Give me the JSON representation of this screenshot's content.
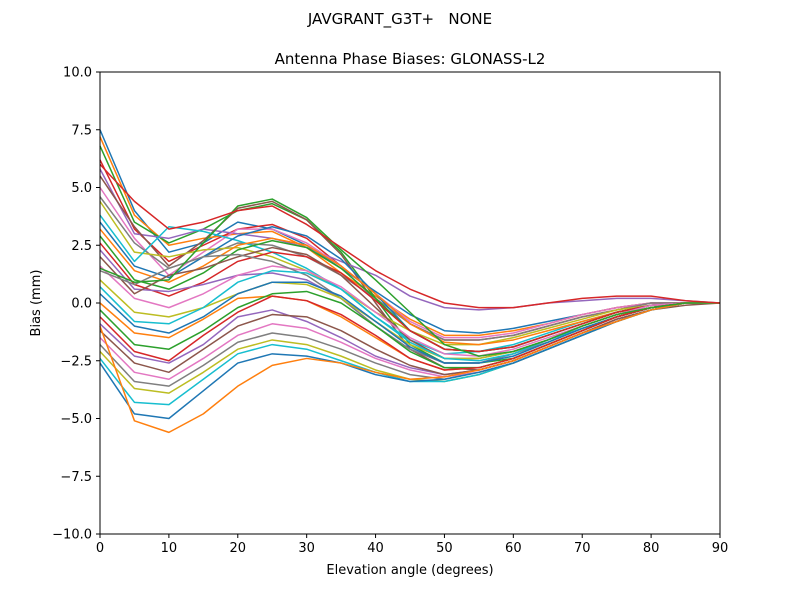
{
  "figure": {
    "suptitle": "JAVGRANT_G3T+   NONE"
  },
  "chart_data": {
    "type": "line",
    "title": "Antenna Phase Biases: GLONASS-L2",
    "xlabel": "Elevation angle (degrees)",
    "ylabel": "Bias (mm)",
    "xlim": [
      0,
      90
    ],
    "ylim": [
      -10,
      10
    ],
    "xticks": [
      0,
      10,
      20,
      30,
      40,
      50,
      60,
      70,
      80,
      90
    ],
    "yticks": [
      -10.0,
      -7.5,
      -5.0,
      -2.5,
      0.0,
      2.5,
      5.0,
      7.5,
      10.0
    ],
    "x": [
      0,
      5,
      10,
      15,
      20,
      25,
      30,
      35,
      40,
      45,
      50,
      55,
      60,
      65,
      70,
      75,
      80,
      85,
      90
    ],
    "grid": false,
    "legend": false,
    "palette": [
      "#1f77b4",
      "#ff7f0e",
      "#2ca02c",
      "#d62728",
      "#9467bd",
      "#8c564b",
      "#e377c2",
      "#7f7f7f",
      "#bcbd22",
      "#17becf"
    ],
    "series": [
      {
        "values": [
          7.5,
          4.0,
          2.2,
          2.6,
          3.5,
          3.2,
          2.5,
          1.5,
          0.5,
          -0.5,
          -1.2,
          -1.3,
          -1.1,
          -0.8,
          -0.5,
          -0.2,
          0.0,
          0.0,
          0.0
        ]
      },
      {
        "values": [
          7.2,
          3.8,
          2.5,
          2.8,
          3.0,
          3.1,
          2.4,
          1.3,
          0.3,
          -0.7,
          -1.4,
          -1.4,
          -1.2,
          -0.9,
          -0.5,
          -0.2,
          0.0,
          0.0,
          0.0
        ]
      },
      {
        "values": [
          6.8,
          3.5,
          2.6,
          3.2,
          4.0,
          4.3,
          3.6,
          2.2,
          0.2,
          -1.8,
          -2.6,
          -2.6,
          -2.4,
          -1.8,
          -1.2,
          -0.6,
          -0.2,
          0.0,
          0.0
        ]
      },
      {
        "values": [
          6.2,
          3.2,
          1.8,
          2.5,
          3.2,
          3.4,
          2.8,
          1.6,
          0.4,
          -0.9,
          -1.6,
          -1.6,
          -1.4,
          -1.0,
          -0.6,
          -0.3,
          0.0,
          0.0,
          0.0
        ]
      },
      {
        "values": [
          5.8,
          3.0,
          2.8,
          3.2,
          3.0,
          2.8,
          2.4,
          1.8,
          1.2,
          0.3,
          -0.2,
          -0.3,
          -0.2,
          0.0,
          0.1,
          0.2,
          0.2,
          0.1,
          0.0
        ]
      },
      {
        "values": [
          5.5,
          3.3,
          1.6,
          2.7,
          4.1,
          4.4,
          3.6,
          2.1,
          0.0,
          -2.0,
          -2.8,
          -2.9,
          -2.5,
          -1.9,
          -1.3,
          -0.7,
          -0.3,
          -0.1,
          0.0
        ]
      },
      {
        "values": [
          5.0,
          2.8,
          1.2,
          2.2,
          3.2,
          3.2,
          2.6,
          1.6,
          0.4,
          -0.8,
          -1.5,
          -1.5,
          -1.3,
          -0.9,
          -0.5,
          -0.2,
          0.0,
          0.0,
          0.0
        ]
      },
      {
        "values": [
          4.6,
          2.6,
          1.5,
          2.0,
          2.6,
          2.5,
          2.0,
          1.2,
          0.2,
          -0.9,
          -1.6,
          -1.6,
          -1.4,
          -1.0,
          -0.6,
          -0.3,
          0.0,
          0.0,
          0.0
        ]
      },
      {
        "values": [
          4.4,
          2.2,
          2.0,
          2.3,
          2.4,
          2.0,
          1.4,
          0.6,
          -0.4,
          -1.2,
          -1.8,
          -1.8,
          -1.5,
          -1.1,
          -0.7,
          -0.3,
          -0.1,
          0.0,
          0.0
        ]
      },
      {
        "values": [
          3.8,
          1.8,
          3.3,
          3.1,
          2.7,
          2.2,
          1.5,
          0.6,
          -0.6,
          -1.6,
          -2.2,
          -2.1,
          -1.8,
          -1.3,
          -0.8,
          -0.4,
          -0.1,
          0.0,
          0.0
        ]
      },
      {
        "values": [
          3.5,
          1.6,
          1.1,
          2.0,
          2.9,
          3.3,
          2.9,
          1.9,
          0.4,
          -1.2,
          -2.0,
          -2.1,
          -1.9,
          -1.4,
          -0.9,
          -0.4,
          -0.1,
          0.0,
          0.0
        ]
      },
      {
        "values": [
          3.2,
          1.4,
          0.9,
          1.6,
          2.5,
          2.8,
          2.5,
          1.6,
          0.4,
          -0.9,
          -1.7,
          -1.8,
          -1.6,
          -1.2,
          -0.8,
          -0.4,
          -0.1,
          0.0,
          0.0
        ]
      },
      {
        "values": [
          2.9,
          1.0,
          0.6,
          1.3,
          2.3,
          2.7,
          2.4,
          1.5,
          0.2,
          -1.2,
          -2.0,
          -2.1,
          -1.9,
          -1.4,
          -0.9,
          -0.4,
          -0.1,
          0.0,
          0.0
        ]
      },
      {
        "values": [
          2.6,
          0.8,
          0.3,
          0.9,
          1.8,
          2.2,
          2.0,
          1.3,
          0.1,
          -1.2,
          -2.0,
          -2.1,
          -1.9,
          -1.4,
          -0.9,
          -0.4,
          -0.1,
          0.0,
          0.0
        ]
      },
      {
        "values": [
          2.3,
          0.6,
          0.5,
          0.8,
          1.2,
          1.3,
          1.0,
          0.2,
          -1.0,
          -2.0,
          -2.6,
          -2.6,
          -2.2,
          -1.6,
          -1.0,
          -0.5,
          -0.1,
          0.0,
          0.0
        ]
      },
      {
        "values": [
          2.0,
          0.4,
          1.2,
          1.5,
          2.0,
          2.4,
          2.1,
          1.2,
          -0.2,
          -1.6,
          -2.4,
          -2.4,
          -2.1,
          -1.6,
          -1.0,
          -0.5,
          -0.2,
          0.0,
          0.0
        ]
      },
      {
        "values": [
          1.6,
          0.2,
          -0.2,
          0.4,
          1.2,
          1.6,
          1.4,
          0.7,
          -0.4,
          -1.5,
          -2.2,
          -2.3,
          -2.0,
          -1.5,
          -1.0,
          -0.5,
          -0.1,
          0.0,
          0.0
        ]
      },
      {
        "values": [
          1.4,
          0.8,
          1.5,
          2.0,
          2.1,
          1.8,
          1.2,
          0.2,
          -1.0,
          -2.0,
          -2.6,
          -2.6,
          -2.2,
          -1.7,
          -1.1,
          -0.6,
          -0.2,
          0.0,
          0.0
        ]
      },
      {
        "values": [
          1.0,
          -0.4,
          -0.6,
          -0.2,
          0.4,
          0.9,
          0.8,
          0.2,
          -0.8,
          -1.8,
          -2.4,
          -2.4,
          -2.1,
          -1.6,
          -1.0,
          -0.5,
          -0.2,
          0.0,
          0.0
        ]
      },
      {
        "values": [
          0.7,
          -0.8,
          -0.9,
          -0.2,
          0.9,
          1.4,
          1.3,
          0.6,
          -0.6,
          -1.7,
          -2.4,
          -2.5,
          -2.2,
          -1.6,
          -1.1,
          -0.6,
          -0.2,
          0.0,
          0.0
        ]
      },
      {
        "values": [
          0.4,
          -1.0,
          -1.3,
          -0.6,
          0.4,
          0.9,
          0.9,
          0.3,
          -0.8,
          -1.9,
          -2.6,
          -2.6,
          -2.3,
          -1.7,
          -1.1,
          -0.6,
          -0.2,
          0.0,
          0.0
        ]
      },
      {
        "values": [
          0.0,
          -1.3,
          -1.5,
          -0.7,
          0.2,
          0.3,
          0.1,
          -0.6,
          -1.5,
          -2.4,
          -2.9,
          -2.8,
          -2.4,
          -1.8,
          -1.2,
          -0.6,
          -0.2,
          0.0,
          0.0
        ]
      },
      {
        "values": [
          -0.3,
          -1.8,
          -2.0,
          -1.2,
          -0.2,
          0.4,
          0.5,
          0.0,
          -1.0,
          -2.1,
          -2.8,
          -2.8,
          -2.4,
          -1.8,
          -1.2,
          -0.6,
          -0.2,
          0.0,
          0.0
        ]
      },
      {
        "values": [
          -0.6,
          -2.1,
          -2.5,
          -1.4,
          -0.4,
          0.3,
          0.1,
          -0.5,
          -1.4,
          -2.4,
          -2.9,
          -2.8,
          -2.4,
          -1.8,
          -1.2,
          -0.6,
          -0.2,
          0.0,
          0.0
        ]
      },
      {
        "values": [
          -0.9,
          -2.3,
          -2.6,
          -1.8,
          -0.6,
          -0.3,
          -0.8,
          -1.5,
          -2.3,
          -2.8,
          -3.1,
          -2.9,
          -2.5,
          -1.9,
          -1.3,
          -0.7,
          -0.3,
          0.0,
          0.0
        ]
      },
      {
        "values": [
          -1.2,
          -2.6,
          -3.0,
          -2.0,
          -1.0,
          -0.5,
          -0.6,
          -1.2,
          -2.0,
          -2.7,
          -3.1,
          -2.9,
          -2.5,
          -1.9,
          -1.3,
          -0.7,
          -0.3,
          0.0,
          0.0
        ]
      },
      {
        "values": [
          -1.5,
          -3.0,
          -3.3,
          -2.4,
          -1.4,
          -0.9,
          -1.1,
          -1.7,
          -2.4,
          -2.9,
          -3.2,
          -3.0,
          -2.6,
          -2.0,
          -1.4,
          -0.8,
          -0.3,
          0.0,
          0.0
        ]
      },
      {
        "values": [
          -1.8,
          -3.4,
          -3.6,
          -2.7,
          -1.7,
          -1.3,
          -1.5,
          -2.0,
          -2.6,
          -3.1,
          -3.3,
          -3.0,
          -2.6,
          -2.0,
          -1.4,
          -0.8,
          -0.3,
          0.0,
          0.0
        ]
      },
      {
        "values": [
          -2.1,
          -3.7,
          -3.9,
          -3.0,
          -2.0,
          -1.6,
          -1.8,
          -2.3,
          -2.9,
          -3.3,
          -3.4,
          -3.1,
          -2.6,
          -2.0,
          -1.4,
          -0.8,
          -0.3,
          0.0,
          0.0
        ]
      },
      {
        "values": [
          -2.4,
          -4.3,
          -4.4,
          -3.3,
          -2.2,
          -1.8,
          -2.0,
          -2.5,
          -3.0,
          -3.4,
          -3.4,
          -3.1,
          -2.6,
          -2.0,
          -1.4,
          -0.8,
          -0.3,
          0.0,
          0.0
        ]
      },
      {
        "values": [
          -2.6,
          -4.8,
          -5.0,
          -3.8,
          -2.6,
          -2.2,
          -2.3,
          -2.6,
          -3.1,
          -3.4,
          -3.3,
          -3.0,
          -2.6,
          -2.0,
          -1.4,
          -0.8,
          -0.3,
          0.0,
          0.0
        ]
      },
      {
        "values": [
          -1.0,
          -5.1,
          -5.6,
          -4.8,
          -3.6,
          -2.7,
          -2.4,
          -2.6,
          -3.0,
          -3.3,
          -3.2,
          -2.9,
          -2.5,
          -1.9,
          -1.3,
          -0.8,
          -0.3,
          0.0,
          0.0
        ]
      },
      {
        "values": [
          1.5,
          0.9,
          1.0,
          2.6,
          4.2,
          4.5,
          3.7,
          2.3,
          1.0,
          -0.4,
          -1.8,
          -2.3,
          -2.1,
          -1.6,
          -1.0,
          -0.5,
          -0.2,
          0.0,
          0.0
        ]
      },
      {
        "values": [
          6.0,
          4.4,
          3.2,
          3.5,
          4.0,
          4.2,
          3.4,
          2.4,
          1.4,
          0.6,
          0.0,
          -0.2,
          -0.2,
          0.0,
          0.2,
          0.3,
          0.3,
          0.1,
          0.0
        ]
      }
    ]
  }
}
